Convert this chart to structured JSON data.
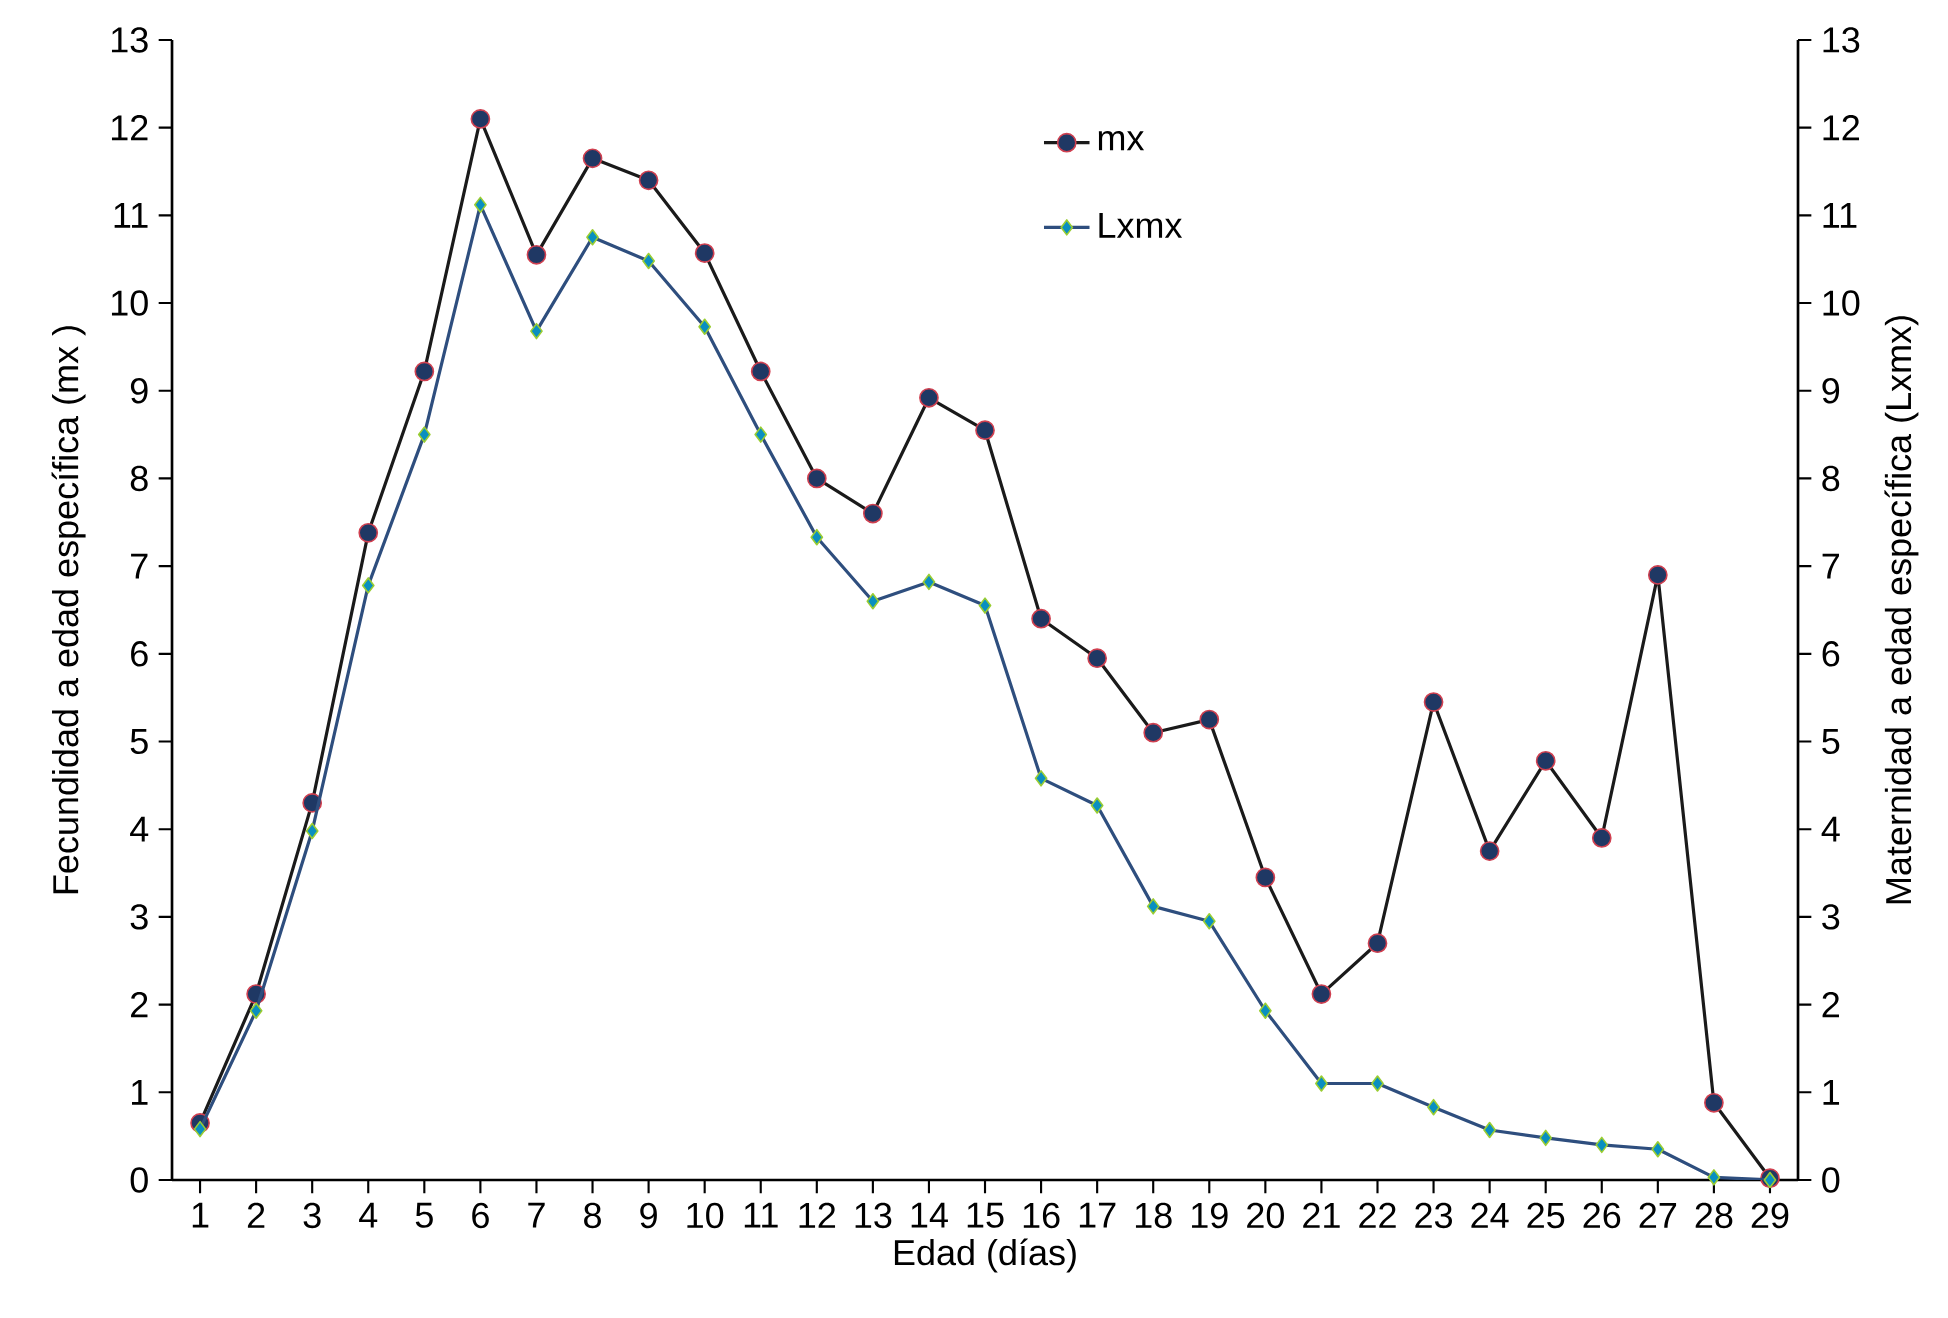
{
  "chart_data": {
    "type": "line",
    "xlabel": "Edad (días)",
    "ylabel": "Fecundidad a edad específica (mx )",
    "y2label": "Maternidad a edad específica (Lxmx)",
    "categories": [
      "1",
      "2",
      "3",
      "4",
      "5",
      "6",
      "7",
      "8",
      "9",
      "10",
      "11",
      "12",
      "13",
      "14",
      "15",
      "16",
      "17",
      "18",
      "19",
      "20",
      "21",
      "22",
      "23",
      "24",
      "25",
      "26",
      "27",
      "28",
      "29"
    ],
    "ylim": [
      0,
      13
    ],
    "yticks": [
      0,
      1,
      2,
      3,
      4,
      5,
      6,
      7,
      8,
      9,
      10,
      11,
      12,
      13
    ],
    "y2lim": [
      0,
      13
    ],
    "y2ticks": [
      0,
      1,
      2,
      3,
      4,
      5,
      6,
      7,
      8,
      9,
      10,
      11,
      12,
      13
    ],
    "legend": "top",
    "grid": false,
    "series": [
      {
        "name": "mx",
        "color": "#1a1a1a",
        "marker": "circle",
        "values": [
          0.65,
          2.12,
          4.3,
          7.38,
          9.22,
          12.1,
          10.55,
          11.65,
          11.4,
          10.57,
          9.22,
          8.0,
          7.6,
          8.92,
          8.55,
          6.4,
          5.95,
          5.1,
          5.25,
          3.45,
          2.12,
          2.7,
          5.45,
          3.75,
          4.78,
          3.9,
          6.9,
          0.88,
          0.02
        ]
      },
      {
        "name": "Lxmx",
        "color": "#2e4e7e",
        "marker": "diamond",
        "axis": "y2",
        "values": [
          0.58,
          1.93,
          3.98,
          6.78,
          8.5,
          11.12,
          9.68,
          10.75,
          10.48,
          9.73,
          8.5,
          7.33,
          6.6,
          6.82,
          6.55,
          4.58,
          4.27,
          3.12,
          2.95,
          1.93,
          1.1,
          1.1,
          0.83,
          0.57,
          0.48,
          0.4,
          0.35,
          0.03,
          0.0
        ]
      }
    ]
  }
}
